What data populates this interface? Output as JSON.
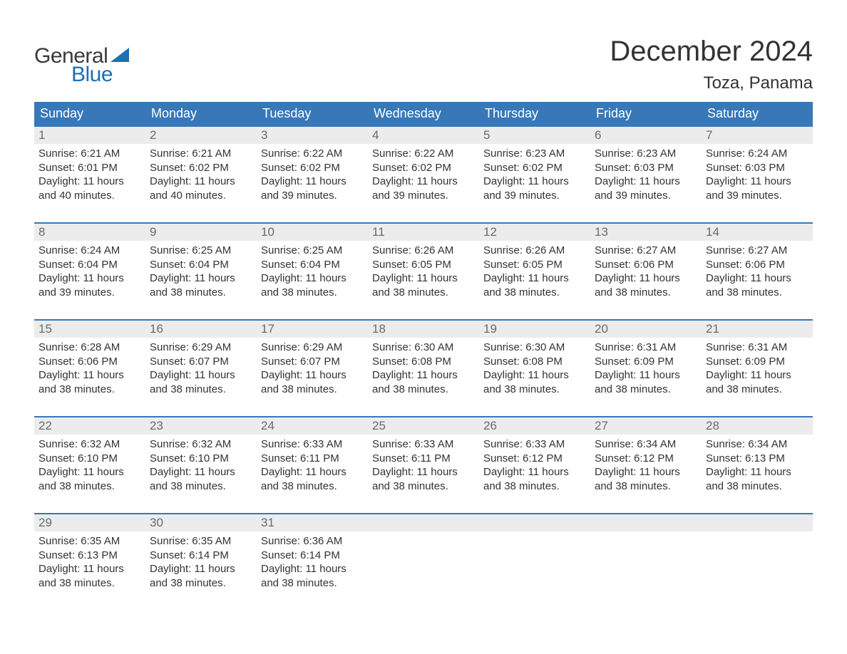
{
  "logo": {
    "textGeneral": "General",
    "textBlue": "Blue"
  },
  "title": "December 2024",
  "location": "Toza, Panama",
  "colors": {
    "headerBg": "#3878b8",
    "headerText": "#ffffff",
    "dayNumBg": "#ececec",
    "dayNumText": "#6b6b6b",
    "bodyText": "#333333",
    "weekBorder": "#3878b8",
    "logoBlue": "#1f6fb2",
    "logoGray": "#3a3a3a",
    "pageBg": "#ffffff"
  },
  "typography": {
    "titleFontSize": 40,
    "locationFontSize": 24,
    "dowFontSize": 18,
    "dayNumFontSize": 17,
    "bodyFontSize": 15,
    "logoFontSize": 30
  },
  "daysOfWeek": [
    "Sunday",
    "Monday",
    "Tuesday",
    "Wednesday",
    "Thursday",
    "Friday",
    "Saturday"
  ],
  "weeks": [
    [
      {
        "n": "1",
        "sunrise": "Sunrise: 6:21 AM",
        "sunset": "Sunset: 6:01 PM",
        "d1": "Daylight: 11 hours",
        "d2": "and 40 minutes."
      },
      {
        "n": "2",
        "sunrise": "Sunrise: 6:21 AM",
        "sunset": "Sunset: 6:02 PM",
        "d1": "Daylight: 11 hours",
        "d2": "and 40 minutes."
      },
      {
        "n": "3",
        "sunrise": "Sunrise: 6:22 AM",
        "sunset": "Sunset: 6:02 PM",
        "d1": "Daylight: 11 hours",
        "d2": "and 39 minutes."
      },
      {
        "n": "4",
        "sunrise": "Sunrise: 6:22 AM",
        "sunset": "Sunset: 6:02 PM",
        "d1": "Daylight: 11 hours",
        "d2": "and 39 minutes."
      },
      {
        "n": "5",
        "sunrise": "Sunrise: 6:23 AM",
        "sunset": "Sunset: 6:02 PM",
        "d1": "Daylight: 11 hours",
        "d2": "and 39 minutes."
      },
      {
        "n": "6",
        "sunrise": "Sunrise: 6:23 AM",
        "sunset": "Sunset: 6:03 PM",
        "d1": "Daylight: 11 hours",
        "d2": "and 39 minutes."
      },
      {
        "n": "7",
        "sunrise": "Sunrise: 6:24 AM",
        "sunset": "Sunset: 6:03 PM",
        "d1": "Daylight: 11 hours",
        "d2": "and 39 minutes."
      }
    ],
    [
      {
        "n": "8",
        "sunrise": "Sunrise: 6:24 AM",
        "sunset": "Sunset: 6:04 PM",
        "d1": "Daylight: 11 hours",
        "d2": "and 39 minutes."
      },
      {
        "n": "9",
        "sunrise": "Sunrise: 6:25 AM",
        "sunset": "Sunset: 6:04 PM",
        "d1": "Daylight: 11 hours",
        "d2": "and 38 minutes."
      },
      {
        "n": "10",
        "sunrise": "Sunrise: 6:25 AM",
        "sunset": "Sunset: 6:04 PM",
        "d1": "Daylight: 11 hours",
        "d2": "and 38 minutes."
      },
      {
        "n": "11",
        "sunrise": "Sunrise: 6:26 AM",
        "sunset": "Sunset: 6:05 PM",
        "d1": "Daylight: 11 hours",
        "d2": "and 38 minutes."
      },
      {
        "n": "12",
        "sunrise": "Sunrise: 6:26 AM",
        "sunset": "Sunset: 6:05 PM",
        "d1": "Daylight: 11 hours",
        "d2": "and 38 minutes."
      },
      {
        "n": "13",
        "sunrise": "Sunrise: 6:27 AM",
        "sunset": "Sunset: 6:06 PM",
        "d1": "Daylight: 11 hours",
        "d2": "and 38 minutes."
      },
      {
        "n": "14",
        "sunrise": "Sunrise: 6:27 AM",
        "sunset": "Sunset: 6:06 PM",
        "d1": "Daylight: 11 hours",
        "d2": "and 38 minutes."
      }
    ],
    [
      {
        "n": "15",
        "sunrise": "Sunrise: 6:28 AM",
        "sunset": "Sunset: 6:06 PM",
        "d1": "Daylight: 11 hours",
        "d2": "and 38 minutes."
      },
      {
        "n": "16",
        "sunrise": "Sunrise: 6:29 AM",
        "sunset": "Sunset: 6:07 PM",
        "d1": "Daylight: 11 hours",
        "d2": "and 38 minutes."
      },
      {
        "n": "17",
        "sunrise": "Sunrise: 6:29 AM",
        "sunset": "Sunset: 6:07 PM",
        "d1": "Daylight: 11 hours",
        "d2": "and 38 minutes."
      },
      {
        "n": "18",
        "sunrise": "Sunrise: 6:30 AM",
        "sunset": "Sunset: 6:08 PM",
        "d1": "Daylight: 11 hours",
        "d2": "and 38 minutes."
      },
      {
        "n": "19",
        "sunrise": "Sunrise: 6:30 AM",
        "sunset": "Sunset: 6:08 PM",
        "d1": "Daylight: 11 hours",
        "d2": "and 38 minutes."
      },
      {
        "n": "20",
        "sunrise": "Sunrise: 6:31 AM",
        "sunset": "Sunset: 6:09 PM",
        "d1": "Daylight: 11 hours",
        "d2": "and 38 minutes."
      },
      {
        "n": "21",
        "sunrise": "Sunrise: 6:31 AM",
        "sunset": "Sunset: 6:09 PM",
        "d1": "Daylight: 11 hours",
        "d2": "and 38 minutes."
      }
    ],
    [
      {
        "n": "22",
        "sunrise": "Sunrise: 6:32 AM",
        "sunset": "Sunset: 6:10 PM",
        "d1": "Daylight: 11 hours",
        "d2": "and 38 minutes."
      },
      {
        "n": "23",
        "sunrise": "Sunrise: 6:32 AM",
        "sunset": "Sunset: 6:10 PM",
        "d1": "Daylight: 11 hours",
        "d2": "and 38 minutes."
      },
      {
        "n": "24",
        "sunrise": "Sunrise: 6:33 AM",
        "sunset": "Sunset: 6:11 PM",
        "d1": "Daylight: 11 hours",
        "d2": "and 38 minutes."
      },
      {
        "n": "25",
        "sunrise": "Sunrise: 6:33 AM",
        "sunset": "Sunset: 6:11 PM",
        "d1": "Daylight: 11 hours",
        "d2": "and 38 minutes."
      },
      {
        "n": "26",
        "sunrise": "Sunrise: 6:33 AM",
        "sunset": "Sunset: 6:12 PM",
        "d1": "Daylight: 11 hours",
        "d2": "and 38 minutes."
      },
      {
        "n": "27",
        "sunrise": "Sunrise: 6:34 AM",
        "sunset": "Sunset: 6:12 PM",
        "d1": "Daylight: 11 hours",
        "d2": "and 38 minutes."
      },
      {
        "n": "28",
        "sunrise": "Sunrise: 6:34 AM",
        "sunset": "Sunset: 6:13 PM",
        "d1": "Daylight: 11 hours",
        "d2": "and 38 minutes."
      }
    ],
    [
      {
        "n": "29",
        "sunrise": "Sunrise: 6:35 AM",
        "sunset": "Sunset: 6:13 PM",
        "d1": "Daylight: 11 hours",
        "d2": "and 38 minutes."
      },
      {
        "n": "30",
        "sunrise": "Sunrise: 6:35 AM",
        "sunset": "Sunset: 6:14 PM",
        "d1": "Daylight: 11 hours",
        "d2": "and 38 minutes."
      },
      {
        "n": "31",
        "sunrise": "Sunrise: 6:36 AM",
        "sunset": "Sunset: 6:14 PM",
        "d1": "Daylight: 11 hours",
        "d2": "and 38 minutes."
      },
      {
        "empty": true
      },
      {
        "empty": true
      },
      {
        "empty": true
      },
      {
        "empty": true
      }
    ]
  ]
}
